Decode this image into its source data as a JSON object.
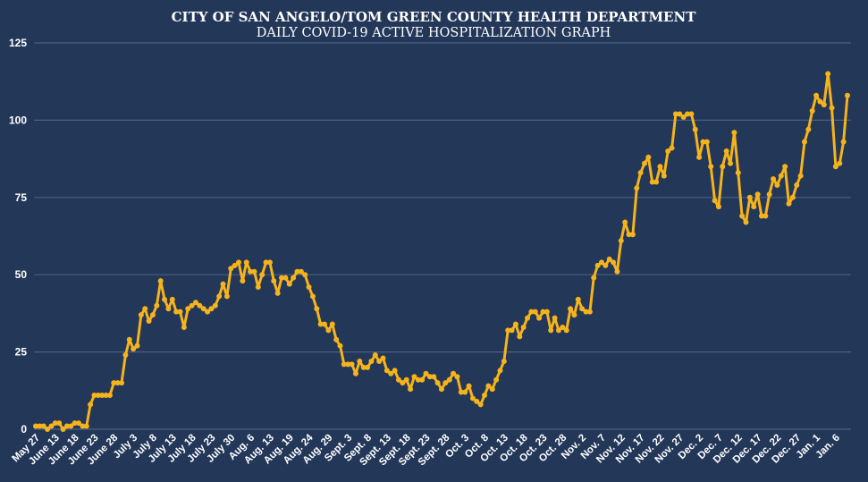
{
  "chart_data": {
    "type": "line",
    "title": "CITY OF SAN ANGELO/TOM GREEN COUNTY HEALTH DEPARTMENT",
    "subtitle": "DAILY COVID-19 ACTIVE HOSPITALIZATION GRAPH",
    "xlabel": "",
    "ylabel": "",
    "ylim": [
      0,
      125
    ],
    "yticks": [
      "0",
      "25",
      "50",
      "75",
      "100",
      "125"
    ],
    "grid": true,
    "label_every": 5,
    "xtick_labels": [
      "May 27",
      "June 13",
      "June 18",
      "June 23",
      "June 28",
      "July 3",
      "July 8",
      "July 13",
      "July 18",
      "July 23",
      "July 30",
      "Aug. 6",
      "Aug. 13",
      "Aug. 19",
      "Aug. 24",
      "Aug. 29",
      "Sept. 3",
      "Sept. 8",
      "Sept. 13",
      "Sept. 18",
      "Sept. 23",
      "Sept. 28",
      "Oct. 3",
      "Oct. 8",
      "Oct. 13",
      "Oct. 18",
      "Oct. 23",
      "Oct. 28",
      "Nov. 2",
      "Nov. 7",
      "Nov. 12",
      "Nov. 17",
      "Nov. 22",
      "Nov. 27",
      "Dec. 2",
      "Dec. 7",
      "Dec. 12",
      "Dec. 17",
      "Dec. 22",
      "Dec. 27",
      "Jan. 1",
      "Jan. 6"
    ],
    "series": [
      {
        "name": "Active hospitalizations",
        "color": "#f5b31c",
        "values": [
          1,
          1,
          1,
          0,
          1,
          2,
          2,
          0,
          1,
          1,
          2,
          2,
          1,
          1,
          8,
          11,
          11,
          11,
          11,
          11,
          15,
          15,
          15,
          24,
          29,
          26,
          27,
          37,
          39,
          35,
          37,
          40,
          48,
          42,
          39,
          42,
          38,
          38,
          33,
          39,
          40,
          41,
          40,
          39,
          38,
          39,
          40,
          43,
          47,
          43,
          52,
          53,
          54,
          48,
          54,
          51,
          51,
          46,
          50,
          54,
          54,
          48,
          44,
          49,
          49,
          47,
          49,
          51,
          51,
          50,
          46,
          43,
          39,
          34,
          34,
          32,
          34,
          29,
          27,
          21,
          21,
          21,
          18,
          22,
          20,
          20,
          22,
          24,
          22,
          23,
          19,
          18,
          19,
          16,
          15,
          16,
          13,
          17,
          16,
          16,
          18,
          17,
          17,
          15,
          13,
          15,
          16,
          18,
          17,
          12,
          12,
          14,
          10,
          9,
          8,
          11,
          14,
          13,
          16,
          19,
          22,
          32,
          32,
          34,
          30,
          33,
          36,
          38,
          38,
          36,
          38,
          38,
          32,
          36,
          32,
          33,
          32,
          39,
          37,
          42,
          39,
          38,
          38,
          49,
          53,
          54,
          53,
          55,
          54,
          51,
          61,
          67,
          63,
          63,
          78,
          83,
          86,
          88,
          80,
          80,
          85,
          82,
          90,
          91,
          102,
          102,
          101,
          102,
          102,
          97,
          88,
          93,
          93,
          85,
          74,
          72,
          85,
          90,
          86,
          96,
          83,
          69,
          67,
          75,
          72,
          76,
          69,
          69,
          76,
          81,
          79,
          82,
          85,
          73,
          75,
          79,
          82,
          93,
          97,
          103,
          108,
          106,
          105,
          115,
          104,
          85,
          86,
          93,
          108
        ]
      }
    ]
  }
}
